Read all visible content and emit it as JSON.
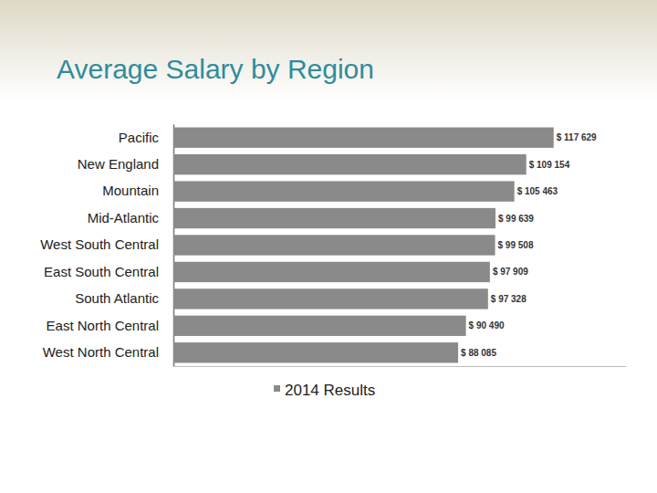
{
  "chart_data": {
    "type": "bar",
    "title": "Average Salary by Region",
    "orientation": "horizontal",
    "categories": [
      "Pacific",
      "New England",
      "Mountain",
      "Mid-Atlantic",
      "West South Central",
      "East South Central",
      "South Atlantic",
      "East North Central",
      "West North Central"
    ],
    "series": [
      {
        "name": "2014 Results",
        "color": "#8a8a8a",
        "values": [
          117629,
          109154,
          105463,
          99639,
          99508,
          97909,
          97328,
          90490,
          88085
        ],
        "value_labels": [
          "$ 117 629",
          "$ 109 154",
          "$ 105 463",
          "$ 99 639",
          "$ 99 508",
          "$ 97 909",
          "$ 97 328",
          "$ 90 490",
          "$ 88 085"
        ]
      }
    ],
    "xlim": [
      0,
      140000
    ],
    "xticks": [],
    "tick_labels": "y",
    "data_labels": true,
    "grid": false,
    "legend": "bottom"
  }
}
